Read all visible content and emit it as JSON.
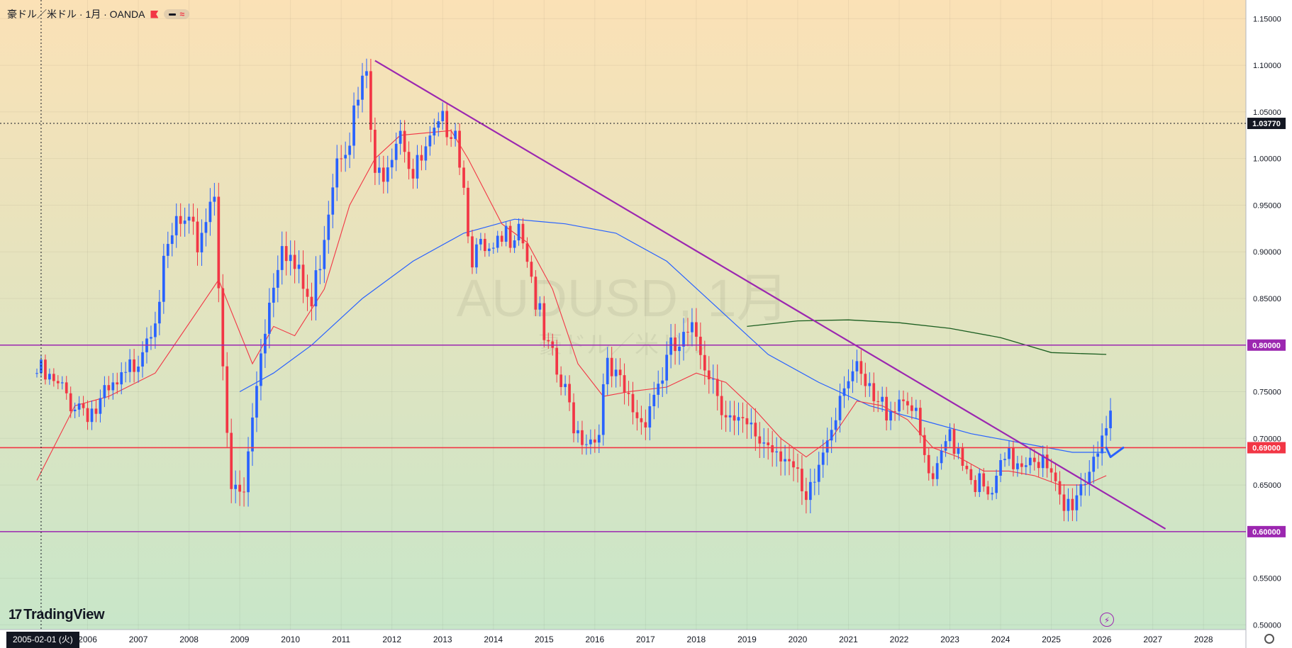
{
  "header": {
    "title": "豪ドル／米ドル · 1月 · OANDA",
    "pill_icons": [
      "minus-icon",
      "wave-icon"
    ]
  },
  "watermark": {
    "main": "AUDUSD, 1月",
    "sub": "豪ドル／米ドル"
  },
  "logo_text": "TradingView",
  "crosshair": {
    "date_label": "2005-02-01 (火)",
    "price_label": "1.03770"
  },
  "colors": {
    "bull": "#2962ff",
    "bear": "#f23645",
    "ma_short": "#f23645",
    "ma_mid": "#2962ff",
    "ma_long": "#1b5e20",
    "level_lines": "#9c27b0",
    "level_0690": "#f23645",
    "trendline": "#9c27b0",
    "projection_arrow": "#2962ff",
    "bg_top": "#fbe1b6",
    "bg_bottom": "#c8e6c9"
  },
  "chart_data": {
    "type": "candlestick",
    "x_axis": {
      "start": "2005-01",
      "end": "2028-06",
      "tick_labels": [
        "2006",
        "2007",
        "2008",
        "2009",
        "2010",
        "2011",
        "2012",
        "2013",
        "2014",
        "2015",
        "2016",
        "2017",
        "2018",
        "2019",
        "2020",
        "2021",
        "2022",
        "2023",
        "2024",
        "2025",
        "2026",
        "2027",
        "2028"
      ]
    },
    "y_axis": {
      "range": [
        0.495,
        1.17
      ],
      "tick_labels": [
        "1.15000",
        "1.10000",
        "1.05000",
        "1.00000",
        "0.95000",
        "0.90000",
        "0.85000",
        "0.80000",
        "0.75000",
        "0.70000",
        "0.65000",
        "0.60000",
        "0.55000",
        "0.50000"
      ]
    },
    "price_path": [
      [
        "2005-01",
        0.77
      ],
      [
        "2005-06",
        0.75
      ],
      [
        "2005-10",
        0.74
      ],
      [
        "2006-03",
        0.73
      ],
      [
        "2006-10",
        0.76
      ],
      [
        "2007-05",
        0.84
      ],
      [
        "2007-10",
        0.93
      ],
      [
        "2008-03",
        0.91
      ],
      [
        "2008-07",
        0.97
      ],
      [
        "2008-10",
        0.69
      ],
      [
        "2008-11",
        0.64
      ],
      [
        "2009-02",
        0.64
      ],
      [
        "2009-06",
        0.8
      ],
      [
        "2009-11",
        0.92
      ],
      [
        "2010-02",
        0.88
      ],
      [
        "2010-06",
        0.84
      ],
      [
        "2010-12",
        1.01
      ],
      [
        "2011-03",
        1.03
      ],
      [
        "2011-07",
        1.09
      ],
      [
        "2011-09",
        0.97
      ],
      [
        "2012-03",
        1.04
      ],
      [
        "2012-06",
        0.98
      ],
      [
        "2013-02",
        1.04
      ],
      [
        "2013-04",
        1.04
      ],
      [
        "2013-08",
        0.9
      ],
      [
        "2014-01",
        0.89
      ],
      [
        "2014-07",
        0.94
      ],
      [
        "2014-09",
        0.9
      ],
      [
        "2015-01",
        0.8
      ],
      [
        "2015-09",
        0.71
      ],
      [
        "2016-01",
        0.7
      ],
      [
        "2016-04",
        0.77
      ],
      [
        "2016-12",
        0.72
      ],
      [
        "2017-07",
        0.79
      ],
      [
        "2018-01",
        0.81
      ],
      [
        "2018-10",
        0.71
      ],
      [
        "2019-10",
        0.69
      ],
      [
        "2020-03",
        0.62
      ],
      [
        "2020-12",
        0.77
      ],
      [
        "2021-02",
        0.77
      ],
      [
        "2021-08",
        0.73
      ],
      [
        "2022-03",
        0.75
      ],
      [
        "2022-09",
        0.64
      ],
      [
        "2023-01",
        0.71
      ],
      [
        "2023-10",
        0.63
      ],
      [
        "2024-02",
        0.67
      ],
      [
        "2024-09",
        0.69
      ],
      [
        "2025-04",
        0.62
      ],
      [
        "2025-09",
        0.66
      ],
      [
        "2026-01",
        0.71
      ],
      [
        "2026-03",
        0.71
      ]
    ],
    "ma_short_path": [
      [
        "2005-01",
        0.655
      ],
      [
        "2005-10",
        0.735
      ],
      [
        "2006-06",
        0.745
      ],
      [
        "2007-05",
        0.77
      ],
      [
        "2008-02",
        0.83
      ],
      [
        "2008-08",
        0.87
      ],
      [
        "2009-04",
        0.78
      ],
      [
        "2009-09",
        0.82
      ],
      [
        "2010-02",
        0.81
      ],
      [
        "2010-09",
        0.86
      ],
      [
        "2011-03",
        0.95
      ],
      [
        "2011-09",
        1.0
      ],
      [
        "2012-03",
        1.025
      ],
      [
        "2013-03",
        1.03
      ],
      [
        "2013-07",
        1.0
      ],
      [
        "2014-03",
        0.93
      ],
      [
        "2014-09",
        0.91
      ],
      [
        "2015-03",
        0.86
      ],
      [
        "2015-09",
        0.78
      ],
      [
        "2016-03",
        0.745
      ],
      [
        "2016-09",
        0.75
      ],
      [
        "2017-06",
        0.755
      ],
      [
        "2018-01",
        0.77
      ],
      [
        "2018-08",
        0.76
      ],
      [
        "2019-03",
        0.73
      ],
      [
        "2019-09",
        0.7
      ],
      [
        "2020-03",
        0.68
      ],
      [
        "2020-09",
        0.7
      ],
      [
        "2021-03",
        0.74
      ],
      [
        "2021-09",
        0.735
      ],
      [
        "2022-03",
        0.72
      ],
      [
        "2022-09",
        0.69
      ],
      [
        "2023-03",
        0.68
      ],
      [
        "2023-09",
        0.665
      ],
      [
        "2024-03",
        0.665
      ],
      [
        "2024-09",
        0.66
      ],
      [
        "2025-03",
        0.65
      ],
      [
        "2025-09",
        0.65
      ],
      [
        "2026-02",
        0.66
      ]
    ],
    "ma_mid_path": [
      [
        "2009-01",
        0.75
      ],
      [
        "2009-09",
        0.77
      ],
      [
        "2010-06",
        0.8
      ],
      [
        "2011-06",
        0.85
      ],
      [
        "2012-06",
        0.89
      ],
      [
        "2013-06",
        0.92
      ],
      [
        "2014-06",
        0.935
      ],
      [
        "2015-06",
        0.93
      ],
      [
        "2016-06",
        0.92
      ],
      [
        "2017-06",
        0.89
      ],
      [
        "2018-06",
        0.84
      ],
      [
        "2019-06",
        0.79
      ],
      [
        "2020-06",
        0.76
      ],
      [
        "2021-06",
        0.735
      ],
      [
        "2022-06",
        0.72
      ],
      [
        "2023-06",
        0.705
      ],
      [
        "2024-06",
        0.695
      ],
      [
        "2025-06",
        0.685
      ],
      [
        "2026-02",
        0.685
      ]
    ],
    "ma_long_path": [
      [
        "2019-01",
        0.82
      ],
      [
        "2020-01",
        0.826
      ],
      [
        "2021-01",
        0.827
      ],
      [
        "2022-01",
        0.824
      ],
      [
        "2023-01",
        0.818
      ],
      [
        "2024-01",
        0.808
      ],
      [
        "2024-07",
        0.8
      ],
      [
        "2025-01",
        0.792
      ],
      [
        "2026-02",
        0.79
      ]
    ],
    "horizontal_levels": [
      {
        "value": 0.8,
        "label": "0.80000",
        "color": "#9c27b0"
      },
      {
        "value": 0.69,
        "label": "0.69000",
        "color": "#f23645"
      },
      {
        "value": 0.6,
        "label": "0.60000",
        "color": "#9c27b0"
      }
    ],
    "trendline": {
      "from": [
        "2011-09",
        1.105
      ],
      "to": [
        "2027-04",
        0.603
      ]
    },
    "crosshair": {
      "x": "2005-02",
      "y": 1.0377
    },
    "projection_arrow": [
      [
        "2026-02",
        0.69
      ],
      [
        "2026-03",
        0.68
      ],
      [
        "2026-06",
        0.69
      ]
    ],
    "grid": true,
    "legend": "none"
  }
}
